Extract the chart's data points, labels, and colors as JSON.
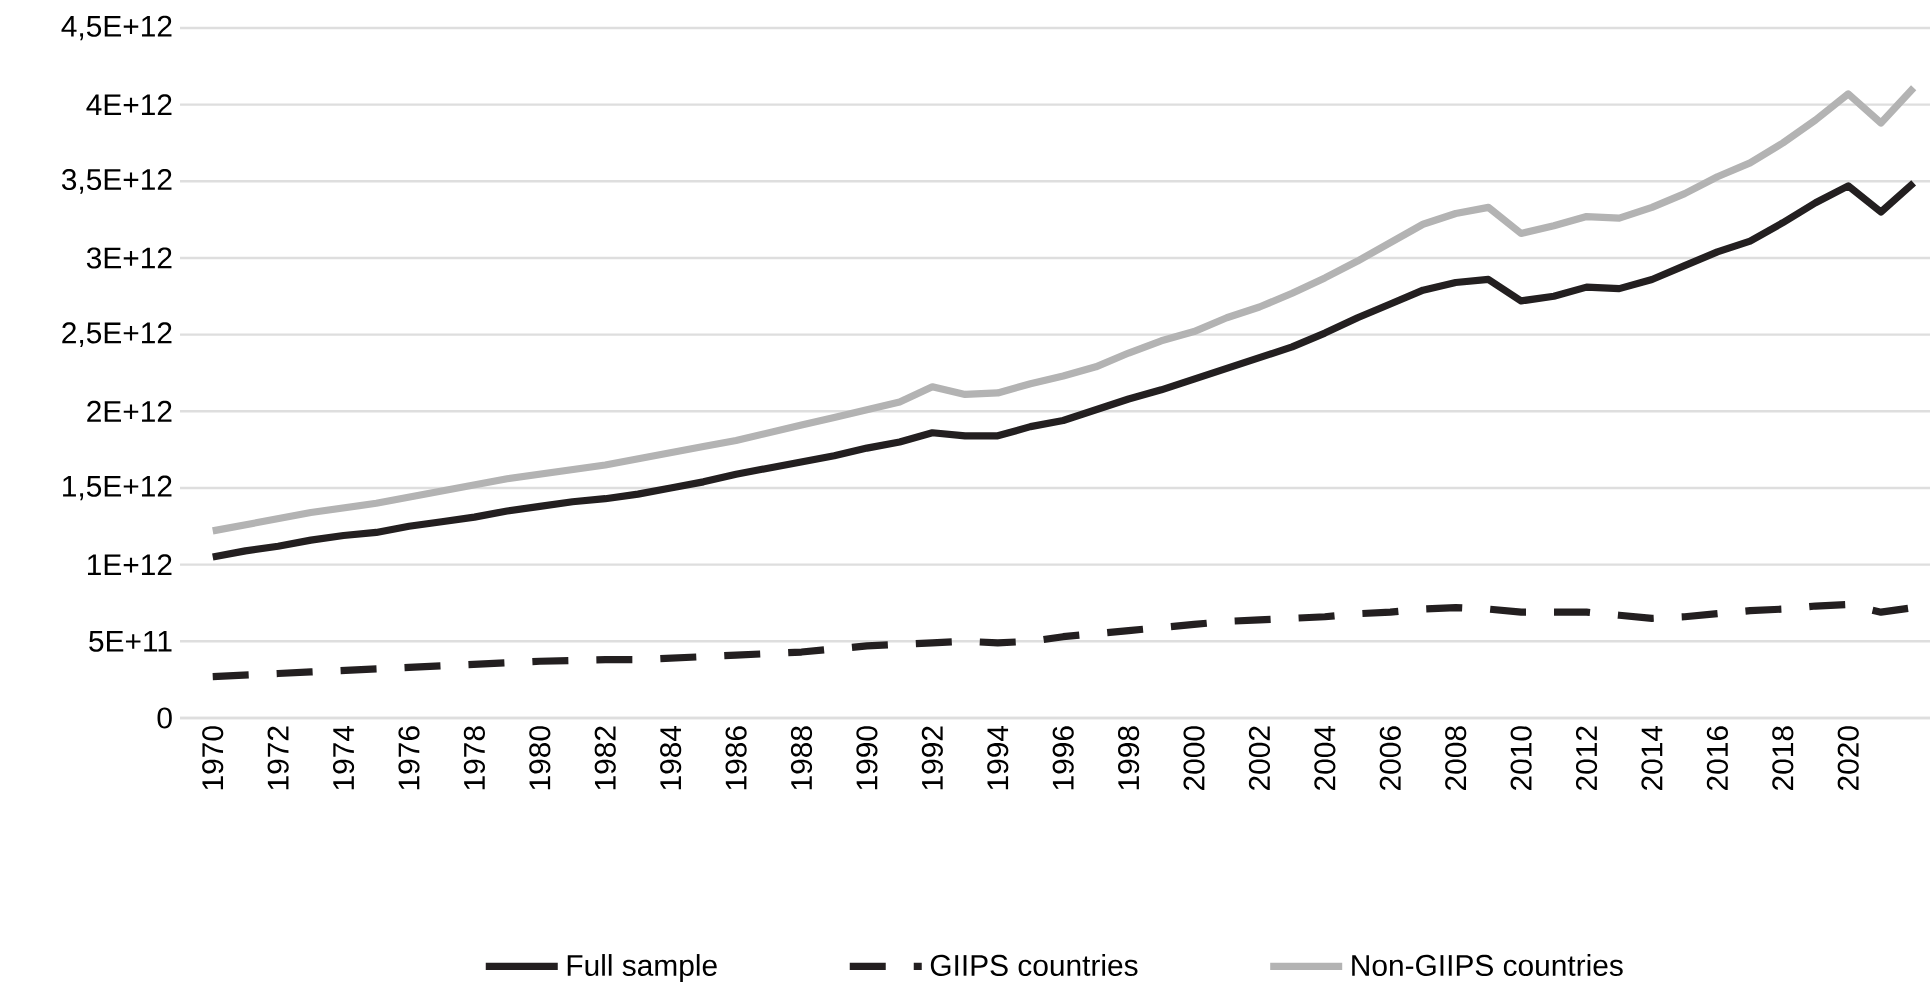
{
  "chart_data": {
    "type": "line",
    "categories": [
      "1970",
      null,
      "1972",
      null,
      "1974",
      null,
      "1976",
      null,
      "1978",
      null,
      "1980",
      null,
      "1982",
      null,
      "1984",
      null,
      "1986",
      null,
      "1988",
      null,
      "1990",
      null,
      "1992",
      null,
      "1994",
      null,
      "1996",
      null,
      "1998",
      null,
      "2000",
      null,
      "2002",
      null,
      "2004",
      null,
      "2006",
      null,
      "2008",
      null,
      "2010",
      null,
      "2012",
      null,
      "2014",
      null,
      "2016",
      null,
      "2018",
      null,
      "2020",
      null,
      null
    ],
    "series": [
      {
        "name": "Full sample",
        "color": "#231f20",
        "line_style": "solid",
        "values": [
          1050000000000.0,
          1090000000000.0,
          1120000000000.0,
          1160000000000.0,
          1190000000000.0,
          1210000000000.0,
          1250000000000.0,
          1280000000000.0,
          1310000000000.0,
          1350000000000.0,
          1380000000000.0,
          1410000000000.0,
          1430000000000.0,
          1460000000000.0,
          1500000000000.0,
          1540000000000.0,
          1590000000000.0,
          1630000000000.0,
          1670000000000.0,
          1710000000000.0,
          1760000000000.0,
          1800000000000.0,
          1860000000000.0,
          1840000000000.0,
          1840000000000.0,
          1900000000000.0,
          1940000000000.0,
          2010000000000.0,
          2080000000000.0,
          2140000000000.0,
          2210000000000.0,
          2280000000000.0,
          2350000000000.0,
          2420000000000.0,
          2510000000000.0,
          2610000000000.0,
          2700000000000.0,
          2790000000000.0,
          2840000000000.0,
          2860000000000.0,
          2720000000000.0,
          2750000000000.0,
          2810000000000.0,
          2800000000000.0,
          2860000000000.0,
          2950000000000.0,
          3040000000000.0,
          3110000000000.0,
          3230000000000.0,
          3360000000000.0,
          3470000000000.0,
          3300000000000.0,
          3490000000000.0
        ]
      },
      {
        "name": "GIIPS countries",
        "color": "#231f20",
        "line_style": "dashed",
        "values": [
          270000000000.0,
          280000000000.0,
          290000000000.0,
          300000000000.0,
          310000000000.0,
          320000000000.0,
          330000000000.0,
          340000000000.0,
          350000000000.0,
          360000000000.0,
          370000000000.0,
          375000000000.0,
          380000000000.0,
          380000000000.0,
          390000000000.0,
          400000000000.0,
          410000000000.0,
          420000000000.0,
          430000000000.0,
          450000000000.0,
          470000000000.0,
          480000000000.0,
          490000000000.0,
          500000000000.0,
          490000000000.0,
          500000000000.0,
          530000000000.0,
          550000000000.0,
          570000000000.0,
          590000000000.0,
          610000000000.0,
          630000000000.0,
          640000000000.0,
          650000000000.0,
          660000000000.0,
          680000000000.0,
          690000000000.0,
          710000000000.0,
          720000000000.0,
          710000000000.0,
          690000000000.0,
          690000000000.0,
          690000000000.0,
          670000000000.0,
          650000000000.0,
          660000000000.0,
          680000000000.0,
          700000000000.0,
          710000000000.0,
          730000000000.0,
          740000000000.0,
          690000000000.0,
          720000000000.0
        ]
      },
      {
        "name": "Non-GIIPS countries",
        "color": "#b3b3b3",
        "line_style": "solid",
        "values": [
          1220000000000.0,
          1260000000000.0,
          1300000000000.0,
          1340000000000.0,
          1370000000000.0,
          1400000000000.0,
          1440000000000.0,
          1480000000000.0,
          1520000000000.0,
          1560000000000.0,
          1590000000000.0,
          1620000000000.0,
          1650000000000.0,
          1690000000000.0,
          1730000000000.0,
          1770000000000.0,
          1810000000000.0,
          1860000000000.0,
          1910000000000.0,
          1960000000000.0,
          2010000000000.0,
          2060000000000.0,
          2160000000000.0,
          2110000000000.0,
          2120000000000.0,
          2180000000000.0,
          2230000000000.0,
          2290000000000.0,
          2380000000000.0,
          2460000000000.0,
          2520000000000.0,
          2610000000000.0,
          2680000000000.0,
          2770000000000.0,
          2870000000000.0,
          2980000000000.0,
          3100000000000.0,
          3220000000000.0,
          3290000000000.0,
          3330000000000.0,
          3160000000000.0,
          3210000000000.0,
          3270000000000.0,
          3260000000000.0,
          3330000000000.0,
          3420000000000.0,
          3530000000000.0,
          3620000000000.0,
          3750000000000.0,
          3900000000000.0,
          4070000000000.0,
          3880000000000.0,
          4110000000000.0
        ]
      }
    ],
    "ylim": [
      0,
      4500000000000.0
    ],
    "yticks": [
      0,
      {
        "value": 500000000000.0,
        "label": "5E+11"
      },
      {
        "value": 1000000000000.0,
        "label": "1E+12"
      },
      {
        "value": 1500000000000.0,
        "label": "1,5E+12"
      },
      {
        "value": 2000000000000.0,
        "label": "2E+12"
      },
      {
        "value": 2500000000000.0,
        "label": "2,5E+12"
      },
      {
        "value": 3000000000000.0,
        "label": "3E+12"
      },
      {
        "value": 3500000000000.0,
        "label": "3,5E+12"
      },
      {
        "value": 4000000000000.0,
        "label": "4E+12"
      },
      {
        "value": 4500000000000.0,
        "label": "4,5E+12"
      }
    ],
    "grid": "y",
    "legend": "bottom",
    "marker": "none"
  }
}
